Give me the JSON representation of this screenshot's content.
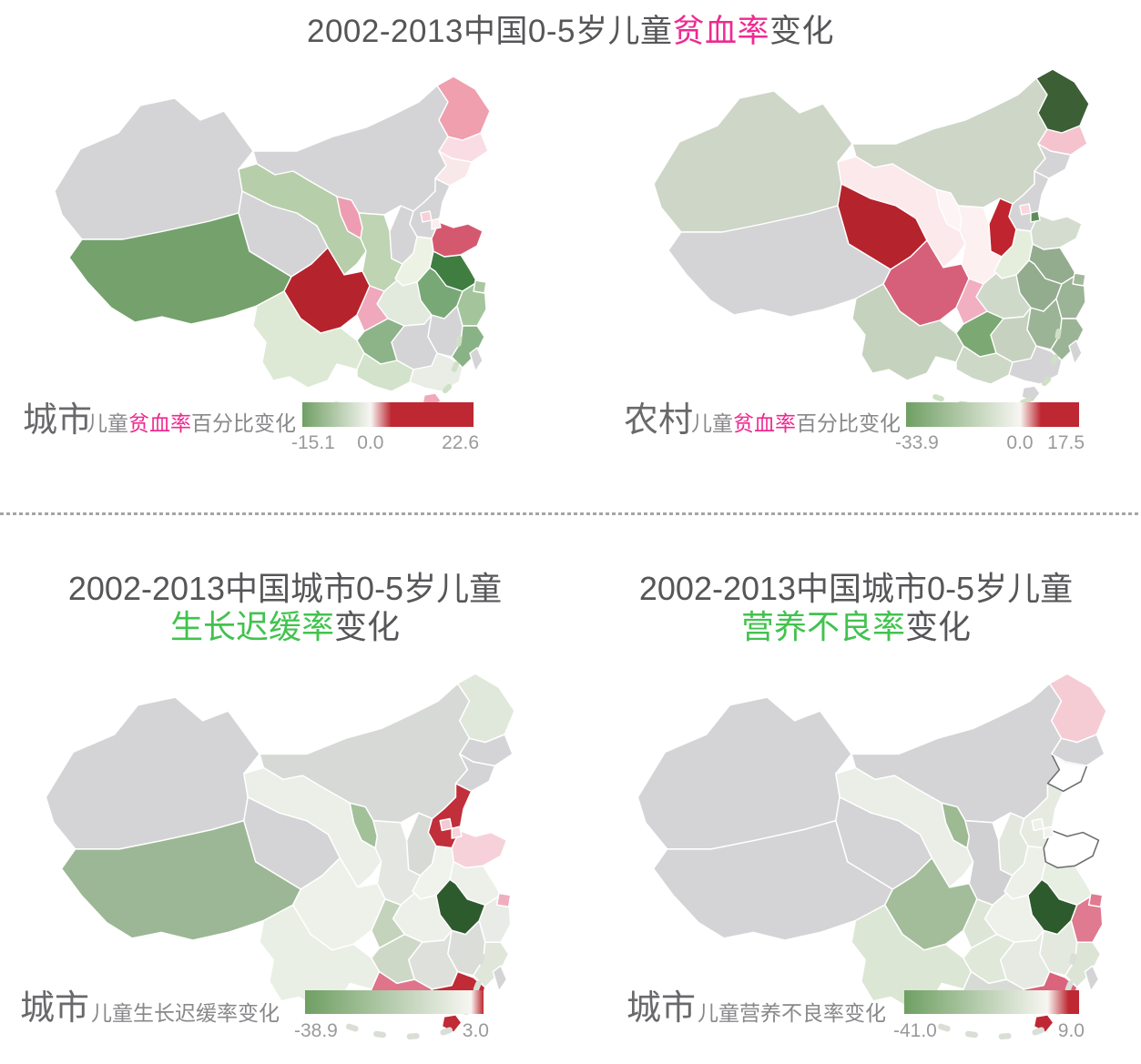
{
  "palette": {
    "accent_magenta": "#ee2a90",
    "accent_green": "#42c24e",
    "title_gray": "#565659",
    "grad_green": "#6f9f63",
    "grad_white": "#f7f6f2",
    "grad_red": "#bd2832",
    "base_gray": "#d4d4d6",
    "border_white": "#ffffff"
  },
  "main_title": {
    "pre": "2002-2013中国0-5岁儿童",
    "highlight": "贫血率",
    "post": "变化"
  },
  "section2_titles": {
    "left": {
      "line1": "2002-2013中国城市0-5岁儿童",
      "highlight": "生长迟缓率",
      "post": "变化"
    },
    "right": {
      "line1": "2002-2013中国城市0-5岁儿童",
      "highlight": "营养不良率",
      "post": "变化"
    }
  },
  "chart_data": [
    {
      "id": "urban_anemia",
      "type": "heatmap",
      "subtype": "china_province_choropleth",
      "title": "城市儿童贫血率百分比变化",
      "series_label": "城市",
      "sub_label_pre": "儿童",
      "sub_label_hl": "贫血率",
      "sub_label_post": "百分比变化",
      "legend": {
        "min": -15.1,
        "zero": 0.0,
        "max": 22.6,
        "min_label": "-15.1",
        "zero_label": "0.0",
        "max_label": "22.6",
        "zero_frac": 0.4
      },
      "default_fill": "#d4d4d6",
      "region_fills": {
        "xinjiang": "#d4d4d6",
        "tibet": "#74a16c",
        "qinghai": "#d4d4d6",
        "gansu": "#b6cea9",
        "neimenggu": "#d4d4d6",
        "heilongjiang": "#ef9fae",
        "jilin": "#fadde4",
        "liaoning": "#f9e8ea",
        "hebei": "#d4d4d6",
        "beijing": "#f6cfd9",
        "tianjin": "#fceef0",
        "shanxi": "#d4d4d6",
        "shaanxi": "#bed4b2",
        "ningxia": "#ee9cb1",
        "shandong": "#d4596f",
        "henan": "#ecf3e5",
        "jiangsu": "#3f7d40",
        "anhui": "#79a877",
        "shanghai": "#a9c6a0",
        "hubei": "#e2e9dd",
        "zhejiang": "#a4c59b",
        "jiangxi": "#d4d4d6",
        "hunan": "#d4d4d6",
        "fujian": "#8ab287",
        "guizhou": "#8db388",
        "sichuan": "#b5232d",
        "chongqing": "#efa8bc",
        "yunnan": "#dde9d4",
        "guangxi": "#d3e2ca",
        "guangdong": "#e9ede5",
        "hainan": "#f1a8ba",
        "taiwan": "#d4d4d6",
        "dashes": "#cfe0c5"
      }
    },
    {
      "id": "rural_anemia",
      "type": "heatmap",
      "subtype": "china_province_choropleth",
      "title": "农村儿童贫血率百分比变化",
      "series_label": "农村",
      "sub_label_pre": "儿童",
      "sub_label_hl": "贫血率",
      "sub_label_post": "百分比变化",
      "legend": {
        "min": -33.9,
        "zero": 0.0,
        "max": 17.5,
        "min_label": "-33.9",
        "zero_label": "0.0",
        "max_label": "17.5",
        "zero_frac": 0.66
      },
      "default_fill": "#d4d4d6",
      "region_fills": {
        "xinjiang": "#cdd6c7",
        "tibet": "#d4d4d6",
        "qinghai": "#b5232d",
        "gansu": "#fbe9ec",
        "neimenggu": "#cdd6c7",
        "heilongjiang": "#3c5f36",
        "jilin": "#f5c3cd",
        "liaoning": "#d4d4d6",
        "hebei": "#d4d4d6",
        "beijing": "#f8d7dd",
        "tianjin": "#5c8f57",
        "shanxi": "#c0242e",
        "shaanxi": "#fcf0f1",
        "ningxia": "#fdf4f5",
        "shandong": "#d4dccf",
        "henan": "#e5eedd",
        "jiangsu": "#93ac8d",
        "anhui": "#93ac8d",
        "shanghai": "#a2b89b",
        "hubei": "#cfd9c9",
        "zhejiang": "#9cb496",
        "jiangxi": "#9cb496",
        "hunan": "#c6d2bf",
        "fujian": "#9cb496",
        "guizhou": "#7ca874",
        "sichuan": "#d6607a",
        "chongqing": "#f2afc2",
        "yunnan": "#c5d2bd",
        "guangxi": "#cdd8c6",
        "guangdong": "#d4d4d6",
        "hainan": "#d4d4d6",
        "taiwan": "#d4d4d6",
        "dashes": "#cfe0c5"
      }
    },
    {
      "id": "urban_stunting",
      "type": "heatmap",
      "subtype": "china_province_choropleth",
      "title": "城市儿童生长迟缓率变化",
      "series_label": "城市",
      "sub_label_pre": "儿童生长迟缓率变化",
      "sub_label_hl": "",
      "sub_label_post": "",
      "legend": {
        "min": -38.9,
        "zero": 0.0,
        "max": 3.0,
        "min_label": "-38.9",
        "zero_label": "",
        "max_label": "3.0",
        "zero_frac": 0.93
      },
      "default_fill": "#d4d4d6",
      "region_fills": {
        "xinjiang": "#d4d4d6",
        "tibet": "#9cb795",
        "qinghai": "#d4d4d6",
        "gansu": "#ebefe7",
        "neimenggu": "#d7d9d6",
        "heilongjiang": "#e0e8db",
        "jilin": "#d4d4d6",
        "liaoning": "#d4d4d6",
        "hebei": "#c02f3a",
        "beijing": "#f3c9d3",
        "tianjin": "#f6d4db",
        "shanxi": "#d8dad6",
        "shaanxi": "#e4e7e1",
        "ningxia": "#a2c199",
        "shandong": "#f7d1d9",
        "henan": "#f0f2ec",
        "jiangsu": "#edf0e9",
        "anhui": "#2e5b2d",
        "shanghai": "#f0adbe",
        "hubei": "#edf0e9",
        "zhejiang": "#e9ece6",
        "jiangxi": "#dbded8",
        "hunan": "#dee1db",
        "fujian": "#e0e6da",
        "guizhou": "#cdd8c6",
        "sichuan": "#eef1ea",
        "chongqing": "#c4d3bc",
        "yunnan": "#e9efe4",
        "guangxi": "#df748b",
        "guangdong": "#c02b36",
        "hainan": "#c02b36",
        "taiwan": "#d4d4d6",
        "dashes": "#d9ded6"
      }
    },
    {
      "id": "urban_malnutrition",
      "type": "heatmap",
      "subtype": "china_province_choropleth",
      "title": "城市儿童营养不良率变化",
      "series_label": "城市",
      "sub_label_pre": "儿童营养不良率变化",
      "sub_label_hl": "",
      "sub_label_post": "",
      "legend": {
        "min": -41.0,
        "zero": 0.0,
        "max": 9.0,
        "min_label": "-41.0",
        "zero_label": "",
        "max_label": "9.0",
        "zero_frac": 0.82
      },
      "default_fill": "#d4d4d6",
      "region_fills": {
        "xinjiang": "#d4d4d6",
        "tibet": "#d4d4d6",
        "qinghai": "#d4d4d6",
        "gansu": "#eaeee6",
        "neimenggu": "#d4d4d6",
        "heilongjiang": "#f6ccd4",
        "jilin": "#d4d4d6",
        "liaoning": "#ffffff",
        "hebei": "#e6ebe1",
        "beijing": "#eef1ea",
        "tianjin": "#f2f2ee",
        "shanxi": "#e3e8df",
        "shaanxi": "#d0d0d2",
        "ningxia": "#9dba93",
        "shandong": "#ffffff",
        "henan": "#edf0e9",
        "jiangsu": "#e7eee2",
        "anhui": "#2e5b2d",
        "shanghai": "#e07b90",
        "hubei": "#eef0ea",
        "zhejiang": "#df7a90",
        "jiangxi": "#e4e9df",
        "hunan": "#e7eae3",
        "fujian": "#dce4d6",
        "guizhou": "#dfe8d9",
        "sichuan": "#a3bd9a",
        "chongqing": "#dce5d6",
        "yunnan": "#dce6d5",
        "guangxi": "#d8dbd5",
        "guangdong": "#d9647c",
        "hainan": "#c02734",
        "taiwan": "#d4d4d6",
        "dashes": "#d9ded6"
      },
      "region_strokes": {
        "liaoning": "#6b6b6b",
        "shandong": "#6b6b6b"
      }
    }
  ]
}
